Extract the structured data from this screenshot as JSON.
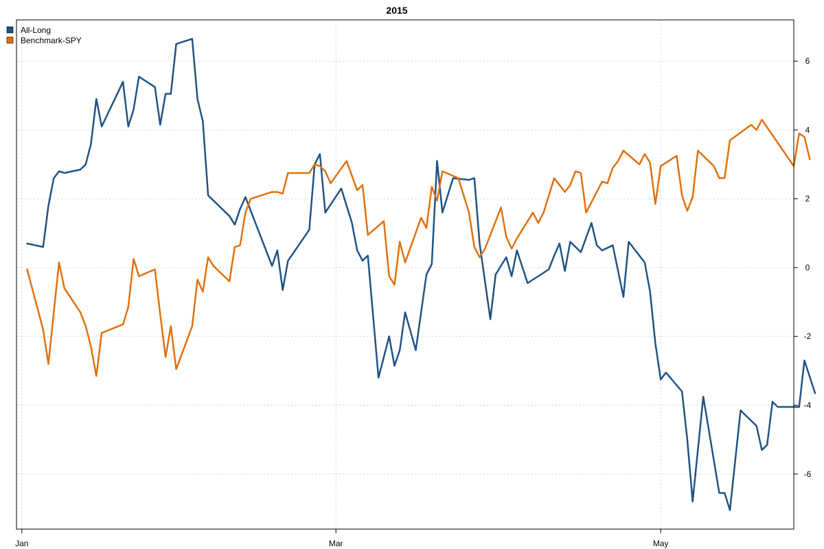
{
  "chart_data": {
    "type": "line",
    "title": "2015",
    "xlabel": "",
    "ylabel": "",
    "ylim": [
      -7.6,
      7.2
    ],
    "x_range": [
      "2014-12-31",
      "2015-05-26"
    ],
    "x_tick_labels": [
      {
        "date": "2015-01-01",
        "label": "Jan"
      },
      {
        "date": "2015-03-01",
        "label": "Mar"
      },
      {
        "date": "2015-05-01",
        "label": "May"
      }
    ],
    "y_ticks": [
      -6,
      -4,
      -2,
      0,
      2,
      4,
      6
    ],
    "grid": true,
    "legend_position": "top-left",
    "series": [
      {
        "name": "All-Long",
        "color": "#1f5384",
        "points": [
          [
            "2015-01-02",
            0.7
          ],
          [
            "2015-01-05",
            0.6
          ],
          [
            "2015-01-06",
            1.8
          ],
          [
            "2015-01-07",
            2.6
          ],
          [
            "2015-01-08",
            2.8
          ],
          [
            "2015-01-09",
            2.75
          ],
          [
            "2015-01-12",
            2.85
          ],
          [
            "2015-01-13",
            3.0
          ],
          [
            "2015-01-14",
            3.6
          ],
          [
            "2015-01-15",
            4.9
          ],
          [
            "2015-01-16",
            4.1
          ],
          [
            "2015-01-20",
            5.4
          ],
          [
            "2015-01-21",
            4.1
          ],
          [
            "2015-01-22",
            4.6
          ],
          [
            "2015-01-23",
            5.55
          ],
          [
            "2015-01-26",
            5.25
          ],
          [
            "2015-01-27",
            4.15
          ],
          [
            "2015-01-28",
            5.05
          ],
          [
            "2015-01-29",
            5.05
          ],
          [
            "2015-01-30",
            6.5
          ],
          [
            "2015-02-02",
            6.65
          ],
          [
            "2015-02-03",
            4.9
          ],
          [
            "2015-02-04",
            4.25
          ],
          [
            "2015-02-05",
            2.1
          ],
          [
            "2015-02-09",
            1.5
          ],
          [
            "2015-02-10",
            1.25
          ],
          [
            "2015-02-11",
            1.7
          ],
          [
            "2015-02-12",
            2.05
          ],
          [
            "2015-02-17",
            0.05
          ],
          [
            "2015-02-18",
            0.5
          ],
          [
            "2015-02-19",
            -0.65
          ],
          [
            "2015-02-20",
            0.2
          ],
          [
            "2015-02-24",
            1.1
          ],
          [
            "2015-02-25",
            3.0
          ],
          [
            "2015-02-26",
            3.3
          ],
          [
            "2015-02-27",
            1.6
          ],
          [
            "2015-03-02",
            2.3
          ],
          [
            "2015-03-04",
            1.3
          ],
          [
            "2015-03-05",
            0.5
          ],
          [
            "2015-03-06",
            0.2
          ],
          [
            "2015-03-07",
            0.35
          ],
          [
            "2015-03-09",
            -3.2
          ],
          [
            "2015-03-11",
            -2.0
          ],
          [
            "2015-03-12",
            -2.85
          ],
          [
            "2015-03-13",
            -2.4
          ],
          [
            "2015-03-14",
            -1.3
          ],
          [
            "2015-03-16",
            -2.4
          ],
          [
            "2015-03-18",
            -0.2
          ],
          [
            "2015-03-19",
            0.1
          ],
          [
            "2015-03-20",
            3.1
          ],
          [
            "2015-03-21",
            1.6
          ],
          [
            "2015-03-23",
            2.6
          ],
          [
            "2015-03-26",
            2.55
          ],
          [
            "2015-03-27",
            2.6
          ],
          [
            "2015-03-28",
            0.7
          ],
          [
            "2015-03-30",
            -1.5
          ],
          [
            "2015-03-31",
            -0.2
          ],
          [
            "2015-04-02",
            0.3
          ],
          [
            "2015-04-03",
            -0.25
          ],
          [
            "2015-04-04",
            0.5
          ],
          [
            "2015-04-06",
            -0.45
          ],
          [
            "2015-04-10",
            -0.05
          ],
          [
            "2015-04-11",
            0.35
          ],
          [
            "2015-04-12",
            0.7
          ],
          [
            "2015-04-13",
            -0.1
          ],
          [
            "2015-04-14",
            0.75
          ],
          [
            "2015-04-16",
            0.45
          ],
          [
            "2015-04-18",
            1.3
          ],
          [
            "2015-04-19",
            0.65
          ],
          [
            "2015-04-20",
            0.5
          ],
          [
            "2015-04-22",
            0.65
          ],
          [
            "2015-04-24",
            -0.85
          ],
          [
            "2015-04-25",
            0.75
          ],
          [
            "2015-04-28",
            0.15
          ],
          [
            "2015-04-29",
            -0.7
          ],
          [
            "2015-04-30",
            -2.2
          ],
          [
            "2015-05-01",
            -3.25
          ],
          [
            "2015-05-02",
            -3.05
          ],
          [
            "2015-05-05",
            -3.6
          ],
          [
            "2015-05-06",
            -5.0
          ],
          [
            "2015-05-07",
            -6.8
          ],
          [
            "2015-05-09",
            -3.75
          ],
          [
            "2015-05-12",
            -6.55
          ],
          [
            "2015-05-13",
            -6.55
          ],
          [
            "2015-05-14",
            -7.05
          ],
          [
            "2015-05-16",
            -4.15
          ],
          [
            "2015-05-19",
            -4.6
          ],
          [
            "2015-05-20",
            -5.3
          ],
          [
            "2015-05-21",
            -5.15
          ],
          [
            "2015-05-22",
            -3.9
          ],
          [
            "2015-05-23",
            -4.05
          ],
          [
            "2015-05-25",
            -4.05
          ],
          [
            "2015-05-27",
            -4.05
          ],
          [
            "2015-05-28",
            -2.7
          ],
          [
            "2015-05-30",
            -3.65
          ]
        ]
      },
      {
        "name": "Benchmark-SPY",
        "color": "#e1700d",
        "points": [
          [
            "2015-01-02",
            -0.05
          ],
          [
            "2015-01-05",
            -1.8
          ],
          [
            "2015-01-06",
            -2.8
          ],
          [
            "2015-01-07",
            -1.3
          ],
          [
            "2015-01-08",
            0.15
          ],
          [
            "2015-01-09",
            -0.6
          ],
          [
            "2015-01-12",
            -1.3
          ],
          [
            "2015-01-13",
            -1.7
          ],
          [
            "2015-01-14",
            -2.3
          ],
          [
            "2015-01-15",
            -3.15
          ],
          [
            "2015-01-16",
            -1.9
          ],
          [
            "2015-01-20",
            -1.65
          ],
          [
            "2015-01-21",
            -1.15
          ],
          [
            "2015-01-22",
            0.25
          ],
          [
            "2015-01-23",
            -0.25
          ],
          [
            "2015-01-26",
            -0.05
          ],
          [
            "2015-01-27",
            -1.35
          ],
          [
            "2015-01-28",
            -2.6
          ],
          [
            "2015-01-29",
            -1.7
          ],
          [
            "2015-01-30",
            -2.95
          ],
          [
            "2015-02-02",
            -1.7
          ],
          [
            "2015-02-03",
            -0.35
          ],
          [
            "2015-02-04",
            -0.7
          ],
          [
            "2015-02-05",
            0.3
          ],
          [
            "2015-02-06",
            0.05
          ],
          [
            "2015-02-09",
            -0.4
          ],
          [
            "2015-02-10",
            0.6
          ],
          [
            "2015-02-11",
            0.65
          ],
          [
            "2015-02-12",
            1.6
          ],
          [
            "2015-02-13",
            2.0
          ],
          [
            "2015-02-17",
            2.2
          ],
          [
            "2015-02-18",
            2.2
          ],
          [
            "2015-02-19",
            2.15
          ],
          [
            "2015-02-20",
            2.75
          ],
          [
            "2015-02-23",
            2.75
          ],
          [
            "2015-02-24",
            2.75
          ],
          [
            "2015-02-25",
            3.0
          ],
          [
            "2015-02-26",
            2.95
          ],
          [
            "2015-02-27",
            2.8
          ],
          [
            "2015-02-28",
            2.45
          ],
          [
            "2015-03-03",
            3.1
          ],
          [
            "2015-03-05",
            2.25
          ],
          [
            "2015-03-06",
            2.4
          ],
          [
            "2015-03-07",
            0.95
          ],
          [
            "2015-03-10",
            1.35
          ],
          [
            "2015-03-11",
            -0.25
          ],
          [
            "2015-03-12",
            -0.5
          ],
          [
            "2015-03-13",
            0.75
          ],
          [
            "2015-03-14",
            0.15
          ],
          [
            "2015-03-17",
            1.45
          ],
          [
            "2015-03-18",
            1.15
          ],
          [
            "2015-03-19",
            2.35
          ],
          [
            "2015-03-20",
            1.95
          ],
          [
            "2015-03-21",
            2.8
          ],
          [
            "2015-03-24",
            2.6
          ],
          [
            "2015-03-26",
            1.6
          ],
          [
            "2015-03-27",
            0.6
          ],
          [
            "2015-03-28",
            0.3
          ],
          [
            "2015-03-29",
            0.55
          ],
          [
            "2015-04-01",
            1.75
          ],
          [
            "2015-04-02",
            0.9
          ],
          [
            "2015-04-03",
            0.55
          ],
          [
            "2015-04-04",
            0.85
          ],
          [
            "2015-04-07",
            1.6
          ],
          [
            "2015-04-08",
            1.3
          ],
          [
            "2015-04-09",
            1.6
          ],
          [
            "2015-04-11",
            2.6
          ],
          [
            "2015-04-13",
            2.2
          ],
          [
            "2015-04-14",
            2.4
          ],
          [
            "2015-04-15",
            2.8
          ],
          [
            "2015-04-16",
            2.75
          ],
          [
            "2015-04-17",
            1.6
          ],
          [
            "2015-04-20",
            2.5
          ],
          [
            "2015-04-21",
            2.45
          ],
          [
            "2015-04-22",
            2.9
          ],
          [
            "2015-04-23",
            3.1
          ],
          [
            "2015-04-24",
            3.4
          ],
          [
            "2015-04-27",
            3.0
          ],
          [
            "2015-04-28",
            3.3
          ],
          [
            "2015-04-29",
            3.05
          ],
          [
            "2015-04-30",
            1.85
          ],
          [
            "2015-05-01",
            2.95
          ],
          [
            "2015-05-04",
            3.25
          ],
          [
            "2015-05-05",
            2.1
          ],
          [
            "2015-05-06",
            1.65
          ],
          [
            "2015-05-07",
            2.05
          ],
          [
            "2015-05-08",
            3.4
          ],
          [
            "2015-05-11",
            2.95
          ],
          [
            "2015-05-12",
            2.6
          ],
          [
            "2015-05-13",
            2.6
          ],
          [
            "2015-05-14",
            3.7
          ],
          [
            "2015-05-18",
            4.15
          ],
          [
            "2015-05-19",
            4.0
          ],
          [
            "2015-05-20",
            4.3
          ],
          [
            "2015-05-26",
            2.95
          ],
          [
            "2015-05-27",
            3.9
          ],
          [
            "2015-05-28",
            3.8
          ],
          [
            "2015-05-29",
            3.15
          ]
        ]
      }
    ]
  }
}
